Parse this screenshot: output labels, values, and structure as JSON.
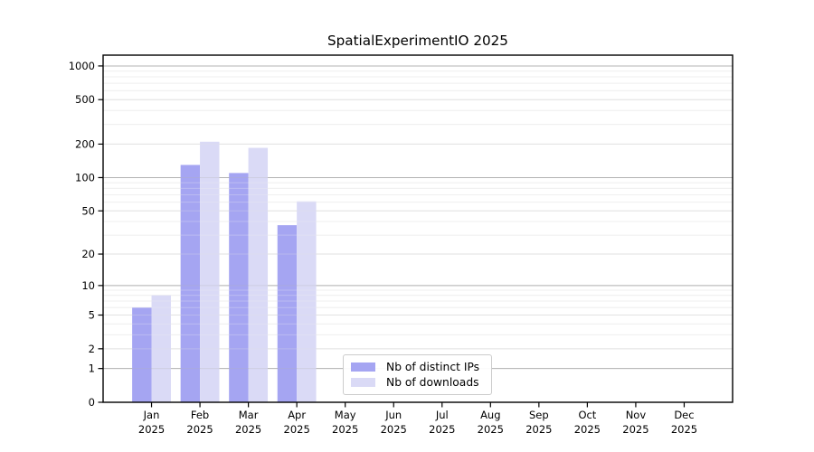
{
  "chart_data": {
    "type": "bar",
    "title": "SpatialExperimentIO 2025",
    "scale": "log1p",
    "categories": [
      "Jan",
      "Feb",
      "Mar",
      "Apr",
      "May",
      "Jun",
      "Jul",
      "Aug",
      "Sep",
      "Oct",
      "Nov",
      "Dec"
    ],
    "year": "2025",
    "series": [
      {
        "name": "Nb of distinct IPs",
        "color": "#a5a5f2",
        "values": [
          6,
          130,
          110,
          37,
          0,
          0,
          0,
          0,
          0,
          0,
          0,
          0
        ]
      },
      {
        "name": "Nb of downloads",
        "color": "#dadaf6",
        "values": [
          8,
          210,
          185,
          61,
          0,
          0,
          0,
          0,
          0,
          0,
          0,
          0
        ]
      }
    ],
    "yticks": [
      0,
      1,
      2,
      5,
      10,
      20,
      50,
      100,
      200,
      500,
      1000
    ],
    "ylim": [
      0,
      1000
    ],
    "xlabel": "",
    "ylabel": "",
    "grid": {
      "orientation": "horizontal",
      "major_color": "#b3b3b3",
      "labeled_color": "#e2e2e2",
      "minor_color": "#f0f0f0"
    },
    "legend_position": "bottom-center-inside",
    "axis_color": "#000000"
  }
}
